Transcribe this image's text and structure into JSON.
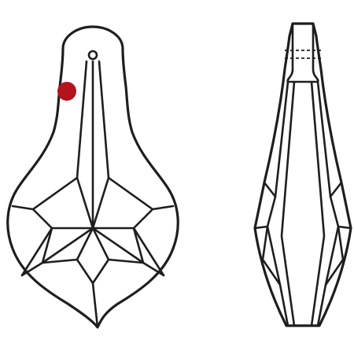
{
  "colors": {
    "background": "#ffffff",
    "line": "#1e1e1e",
    "marker": "#b3131b"
  },
  "views": [
    {
      "view": "front",
      "shape": "pear-drop crystal pendant",
      "has_hanging_hole": true
    },
    {
      "view": "side",
      "shape": "elongated faceted profile"
    }
  ],
  "marker": {
    "shape": "circle",
    "color": "#b3131b"
  }
}
